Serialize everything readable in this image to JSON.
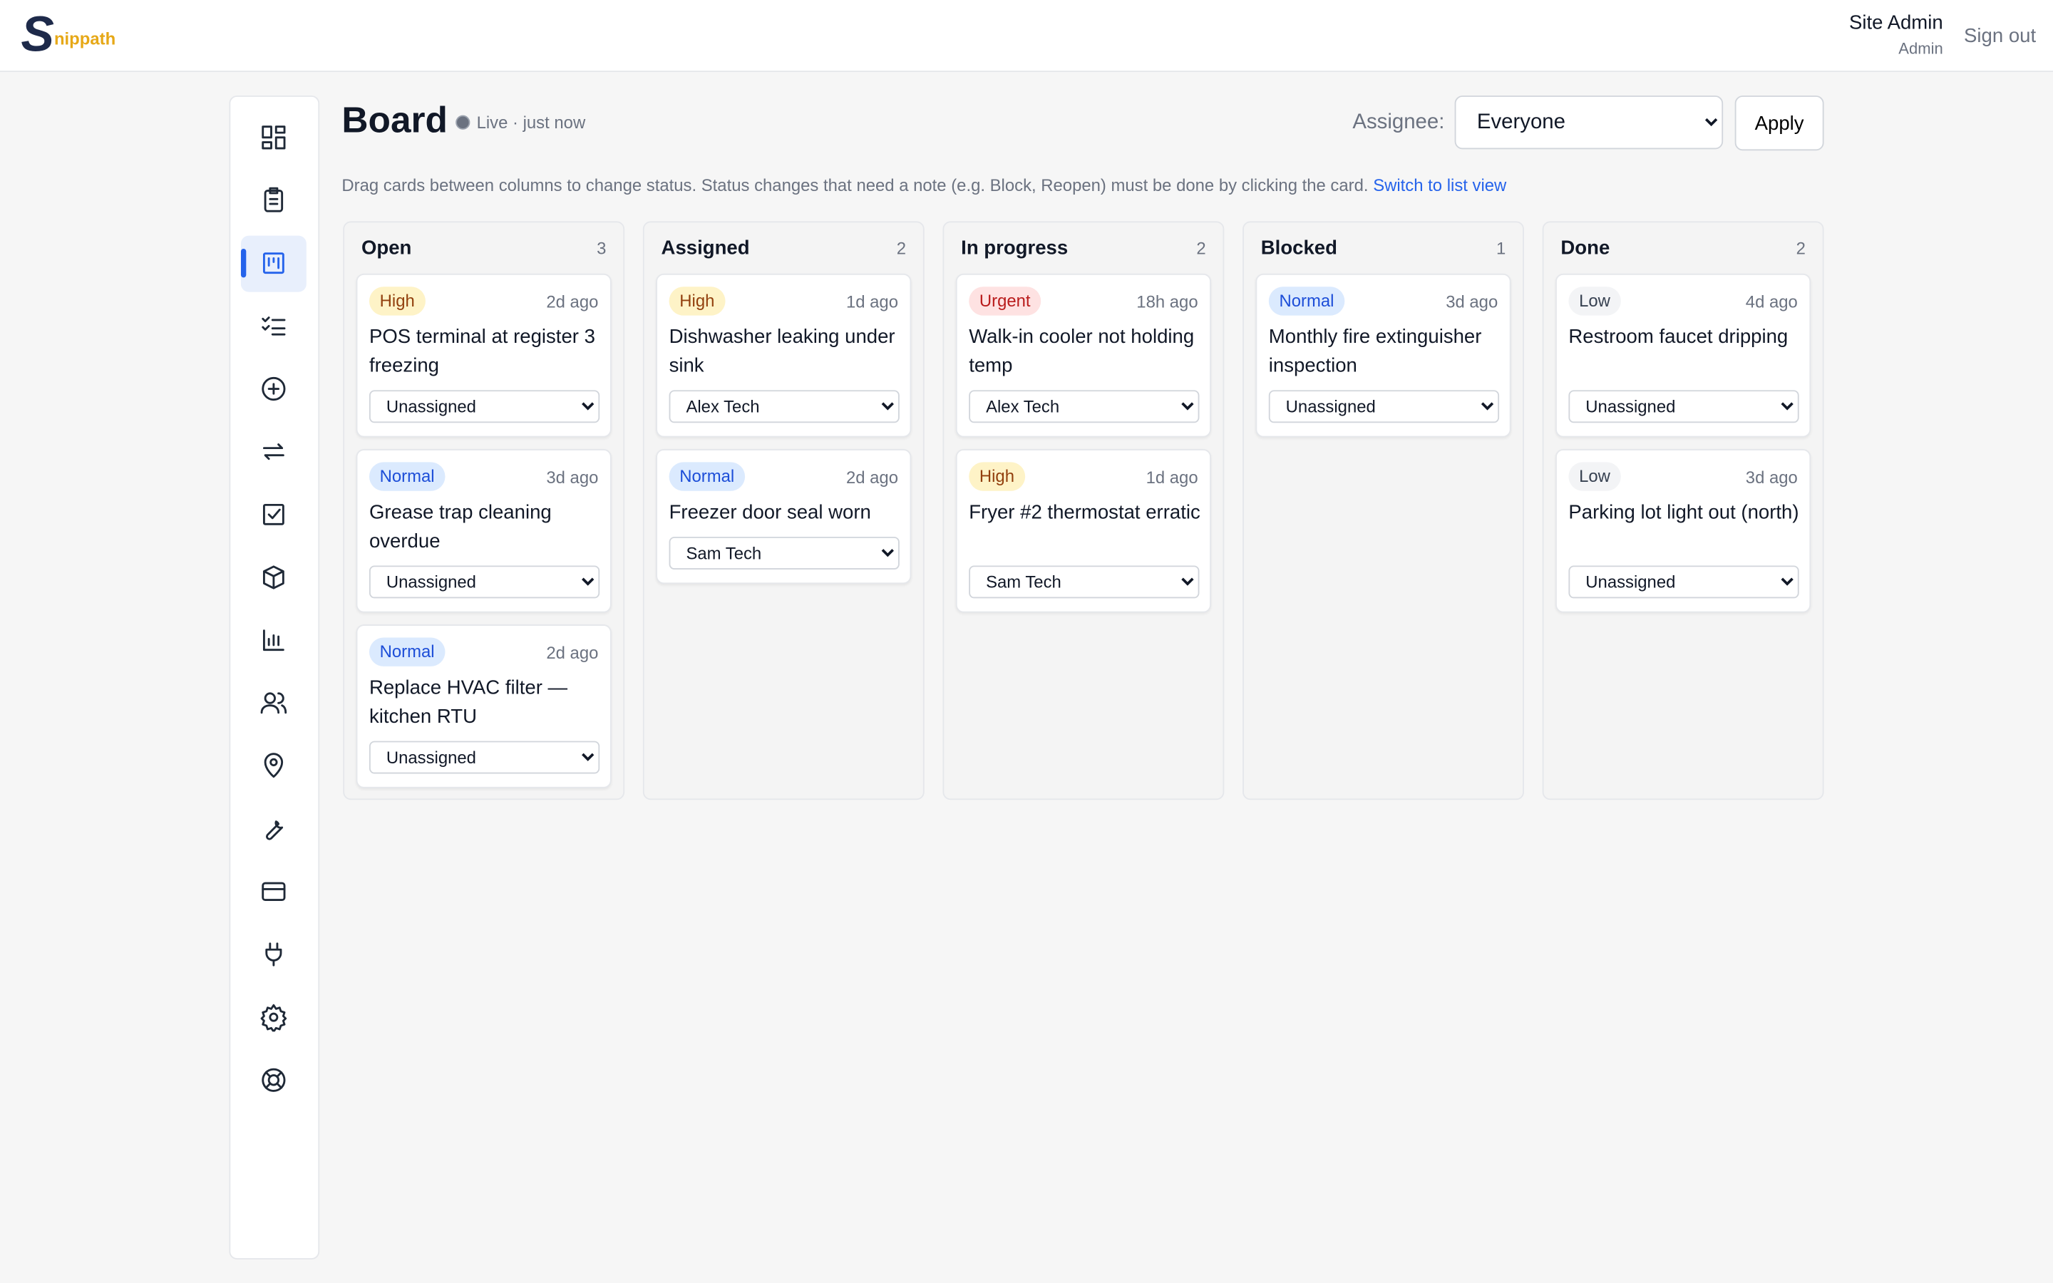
{
  "header": {
    "logo_letter": "S",
    "logo_text": "nippath",
    "user_name": "Site Admin",
    "user_role": "Admin",
    "sign_out": "Sign out"
  },
  "board": {
    "title": "Board",
    "status": "Live · just now",
    "filter_label": "Assignee:",
    "filter_value": "Everyone",
    "apply": "Apply",
    "hint": "Drag cards between columns to change status. Status changes that need a note (e.g. Block, Reopen) must be done by clicking the card.",
    "hint_link": "Switch to list view",
    "columns": [
      {
        "name": "Open",
        "count": 3,
        "cards": [
          {
            "priority": "High",
            "age": "2d ago",
            "title": "POS terminal at register 3 freezing",
            "assignee": "Unassigned"
          },
          {
            "priority": "Normal",
            "age": "3d ago",
            "title": "Grease trap cleaning overdue",
            "assignee": "Unassigned"
          },
          {
            "priority": "Normal",
            "age": "2d ago",
            "title": "Replace HVAC filter — kitchen RTU",
            "assignee": "Unassigned"
          }
        ]
      },
      {
        "name": "Assigned",
        "count": 2,
        "cards": [
          {
            "priority": "High",
            "age": "1d ago",
            "title": "Dishwasher leaking under sink",
            "assignee": "Alex Tech"
          },
          {
            "priority": "Normal",
            "age": "2d ago",
            "title": "Freezer door seal worn",
            "assignee": "Sam Tech"
          }
        ]
      },
      {
        "name": "In progress",
        "count": 2,
        "cards": [
          {
            "priority": "Urgent",
            "age": "18h ago",
            "title": "Walk-in cooler not holding temp",
            "assignee": "Alex Tech"
          },
          {
            "priority": "High",
            "age": "1d ago",
            "title": "Fryer #2 thermostat erratic",
            "assignee": "Sam Tech"
          }
        ]
      },
      {
        "name": "Blocked",
        "count": 1,
        "cards": [
          {
            "priority": "Normal",
            "age": "3d ago",
            "title": "Monthly fire extinguisher inspection",
            "assignee": "Unassigned"
          }
        ]
      },
      {
        "name": "Done",
        "count": 2,
        "cards": [
          {
            "priority": "Low",
            "age": "4d ago",
            "title": "Restroom faucet dripping",
            "assignee": "Unassigned"
          },
          {
            "priority": "Low",
            "age": "3d ago",
            "title": "Parking lot light out (north)",
            "assignee": "Unassigned"
          }
        ]
      }
    ]
  }
}
